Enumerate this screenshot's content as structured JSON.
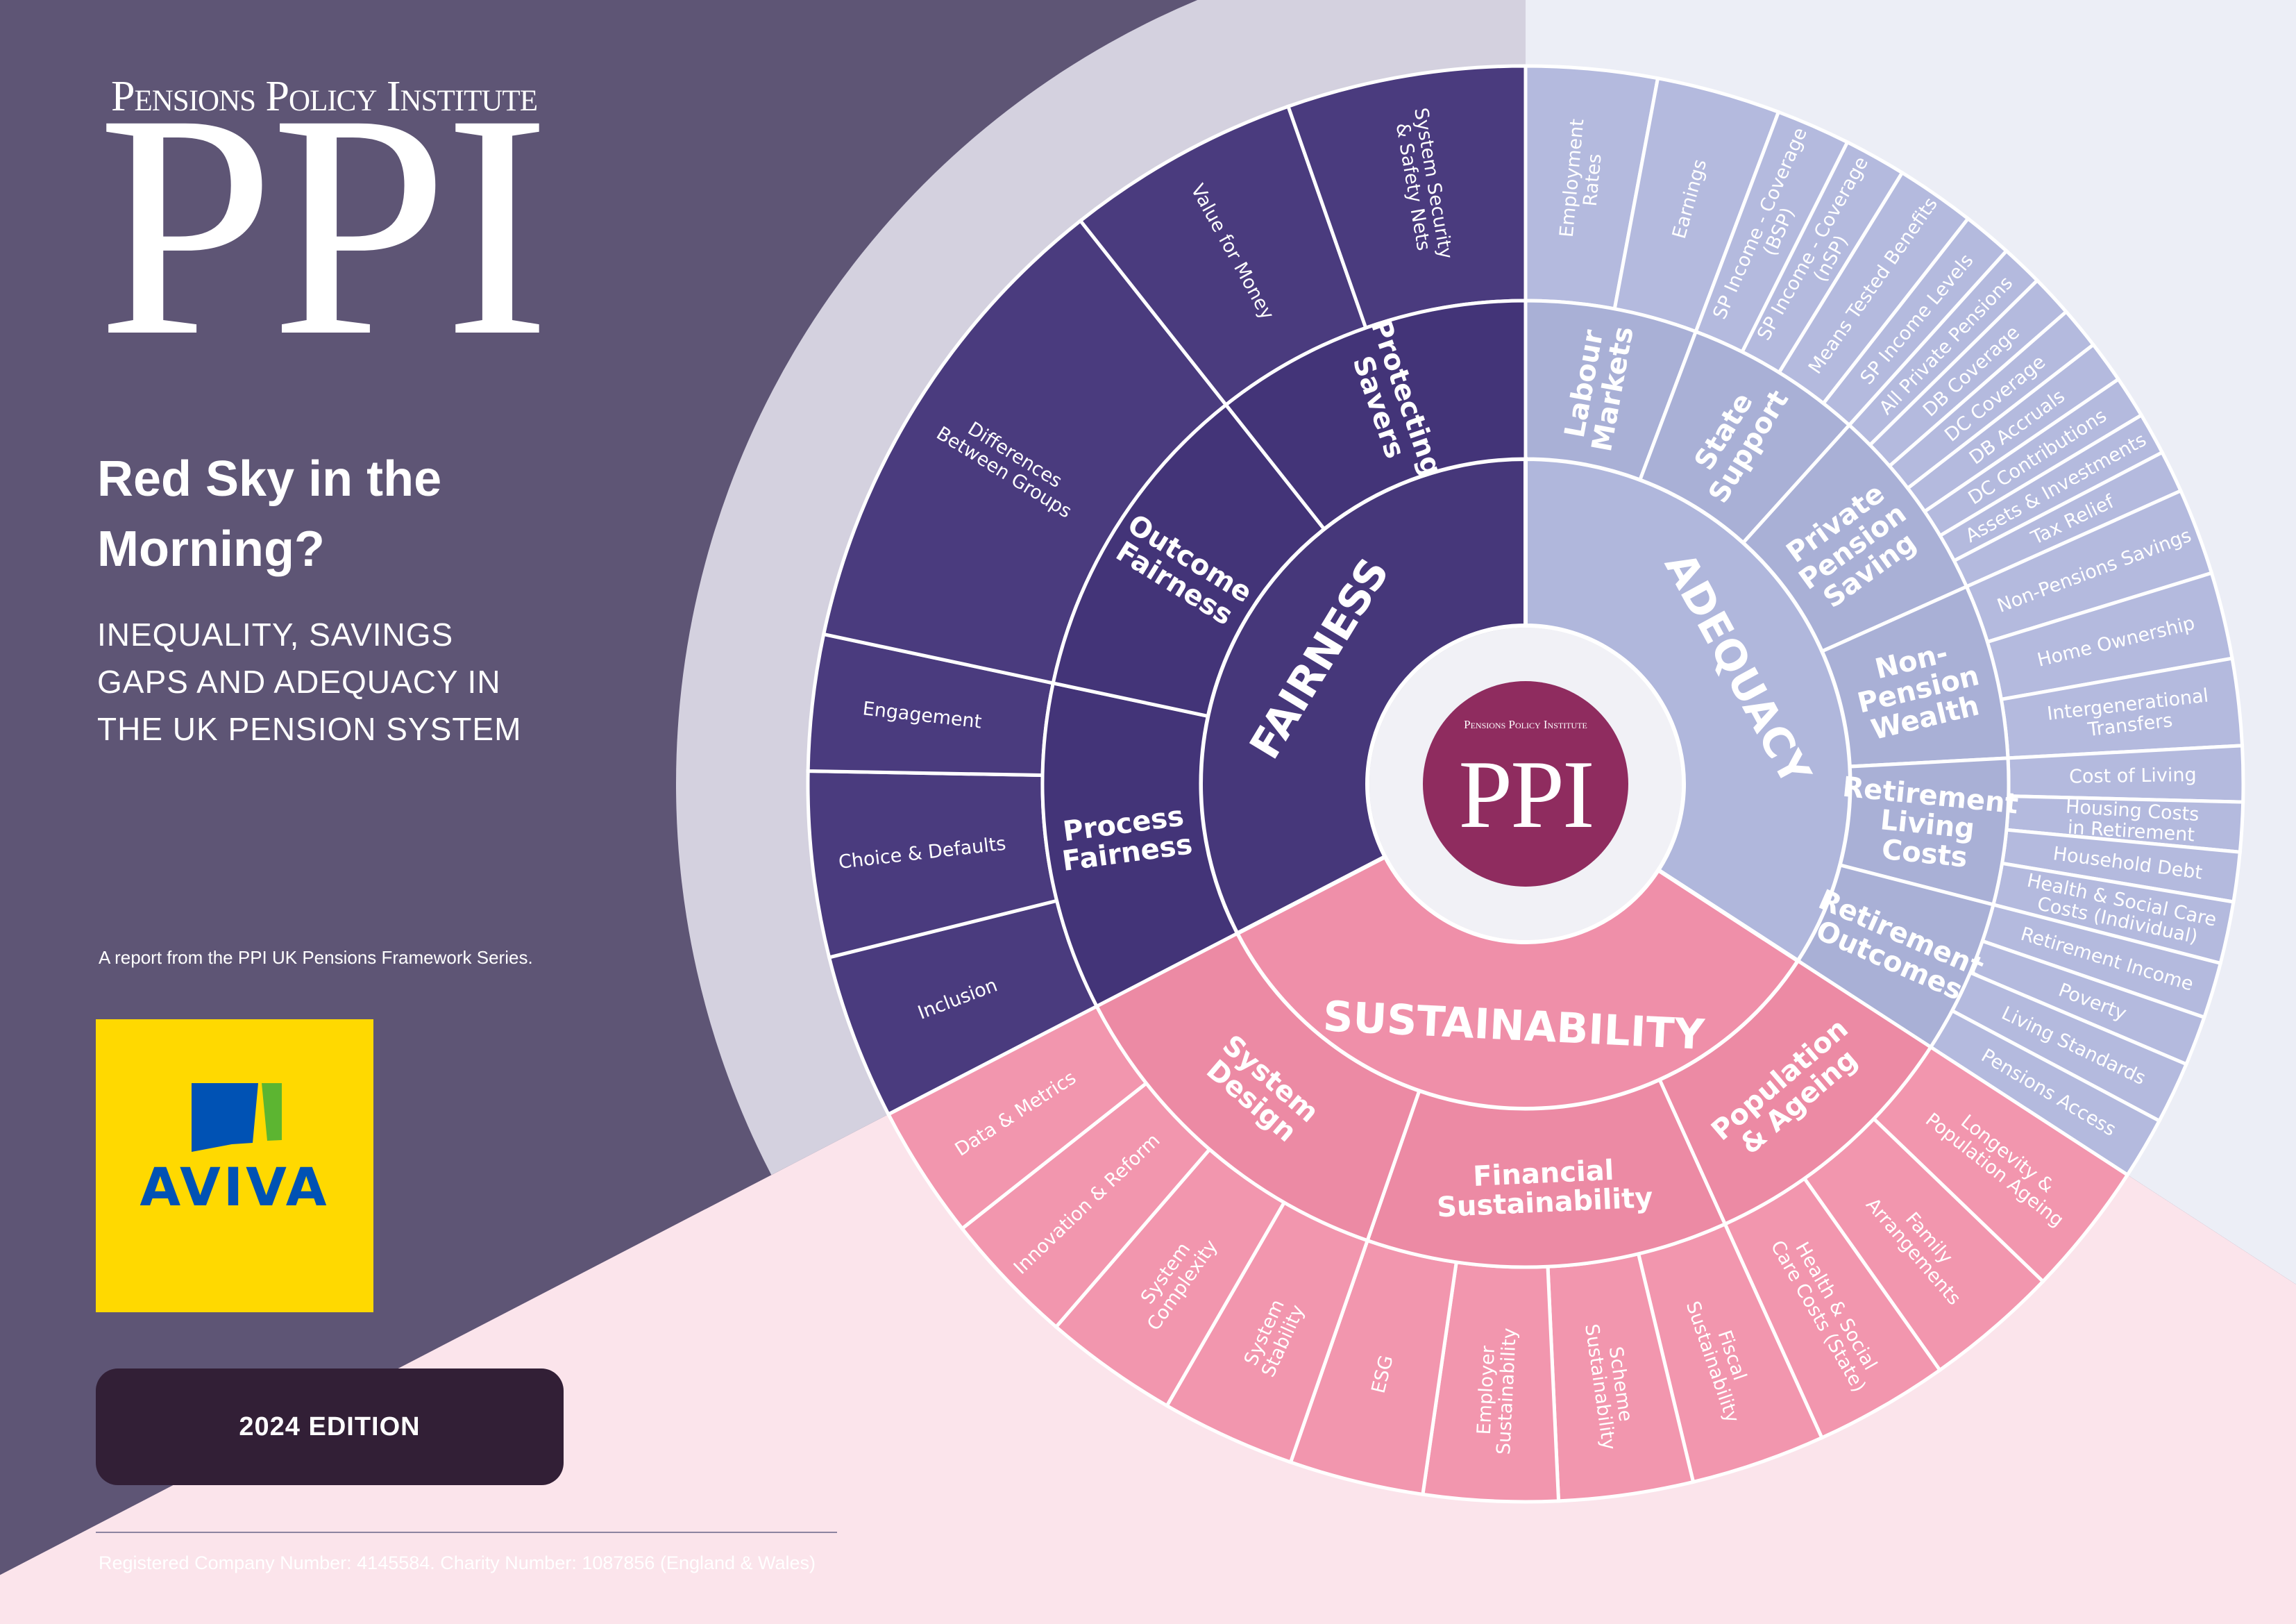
{
  "branding": {
    "org_name": "Pensions Policy Institute",
    "mark": "PPI"
  },
  "cover": {
    "title": "Red Sky in the Morning?",
    "subtitle": "INEQUALITY, SAVINGS GAPS AND ADEQUACY IN THE UK PENSION SYSTEM",
    "series_note": "A report from the PPI UK Pensions Framework Series.",
    "edition": "2024 EDITION",
    "registration": "Registered Company Number: 4145584. Charity Number: 1087856 (England & Wales)"
  },
  "sponsor": {
    "name": "AVIVA",
    "colors": {
      "background": "#ffd900",
      "blue": "#0052b4",
      "green": "#5cb531"
    }
  },
  "colors": {
    "page": "#5e5575",
    "fairness": "#46377a",
    "adequacy": "#b0b7dc",
    "sustainability": "#ef8fa9",
    "center": "#8f2c5f"
  },
  "diagram": {
    "center_logo": {
      "org_name": "Pensions Policy Institute",
      "mark": "PPI"
    },
    "categories": [
      {
        "name": "ADEQUACY",
        "color": "#b0b7dc",
        "subcategories": [
          {
            "name": "Labour\nMarkets",
            "items": [
              "Employment\nRates",
              "Earnings"
            ]
          },
          {
            "name": "State\nSupport",
            "items": [
              "SP Income - Coverage\n(BSP)",
              "SP Income - Coverage\n(nSP)",
              "Means Tested Benefits",
              "SP Income Levels"
            ]
          },
          {
            "name": "Private\nPension\nSaving",
            "items": [
              "All Private Pensions",
              "DB Coverage",
              "DC Coverage",
              "DB Accruals",
              "DC Contributions",
              "Assets & Investments",
              "Tax Relief"
            ]
          },
          {
            "name": "Non-\nPension\nWealth",
            "items": [
              "Non-Pensions Savings",
              "Home Ownership",
              "Intergenerational\nTransfers"
            ]
          },
          {
            "name": "Retirement\nLiving\nCosts",
            "items": [
              "Cost of Living",
              "Housing Costs\nin Retirement",
              "Household Debt",
              "Health & Social Care\nCosts (Individual)"
            ]
          },
          {
            "name": "Retirement\nOutcomes",
            "items": [
              "Retirement Income",
              "Poverty",
              "Living Standards",
              "Pensions Access"
            ]
          }
        ]
      },
      {
        "name": "SUSTAINABILITY",
        "color": "#ef8fa9",
        "subcategories": [
          {
            "name": "Population\n& Ageing",
            "items": [
              "Longevity &\nPopulation Ageing",
              "Family\nArrangements",
              "Health & Social\nCare Costs (State)"
            ]
          },
          {
            "name": "Financial\nSustainability",
            "items": [
              "Fiscal\nSustainability",
              "Scheme\nSustainability",
              "Employer\nSustainability",
              "ESG"
            ]
          },
          {
            "name": "System\nDesign",
            "items": [
              "System\nStability",
              "System\nComplexity",
              "Innovation & Reform",
              "Data & Metrics"
            ]
          }
        ]
      },
      {
        "name": "FAIRNESS",
        "color": "#46377a",
        "subcategories": [
          {
            "name": "Process\nFairness",
            "items": [
              "Inclusion",
              "Choice & Defaults",
              "Engagement"
            ]
          },
          {
            "name": "Outcome\nFairness",
            "items": [
              "Differences\nBetween Groups"
            ]
          },
          {
            "name": "Protecting\nSavers",
            "items": [
              "Value for Money",
              "System Security\n& Safety Nets"
            ]
          }
        ]
      }
    ]
  }
}
